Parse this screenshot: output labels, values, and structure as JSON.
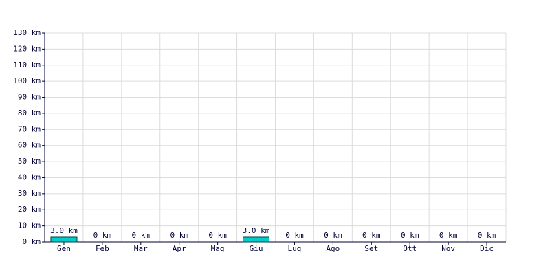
{
  "chart_data": {
    "type": "bar",
    "categories": [
      "Gen",
      "Feb",
      "Mar",
      "Apr",
      "Mag",
      "Giu",
      "Lug",
      "Ago",
      "Set",
      "Ott",
      "Nov",
      "Dic"
    ],
    "values": [
      3.0,
      0,
      0,
      0,
      0,
      3.0,
      0,
      0,
      0,
      0,
      0,
      0
    ],
    "value_labels": [
      "3.0 km",
      "0 km",
      "0 km",
      "0 km",
      "0 km",
      "3.0 km",
      "0 km",
      "0 km",
      "0 km",
      "0 km",
      "0 km",
      "0 km"
    ],
    "color": "#00cccc",
    "ylim": [
      0,
      130
    ],
    "yticks": [
      {
        "value": 0,
        "label": "0 km"
      },
      {
        "value": 10,
        "label": "10 km"
      },
      {
        "value": 20,
        "label": "20 km"
      },
      {
        "value": 30,
        "label": "30 km"
      },
      {
        "value": 40,
        "label": "40 km"
      },
      {
        "value": 50,
        "label": "50 km"
      },
      {
        "value": 60,
        "label": "60 km"
      },
      {
        "value": 70,
        "label": "70 km"
      },
      {
        "value": 80,
        "label": "80 km"
      },
      {
        "value": 90,
        "label": "90 km"
      },
      {
        "value": 100,
        "label": "100 km"
      },
      {
        "value": 110,
        "label": "110 km"
      },
      {
        "value": 120,
        "label": "120 km"
      },
      {
        "value": 130,
        "label": "130 km"
      }
    ],
    "grid": true
  }
}
